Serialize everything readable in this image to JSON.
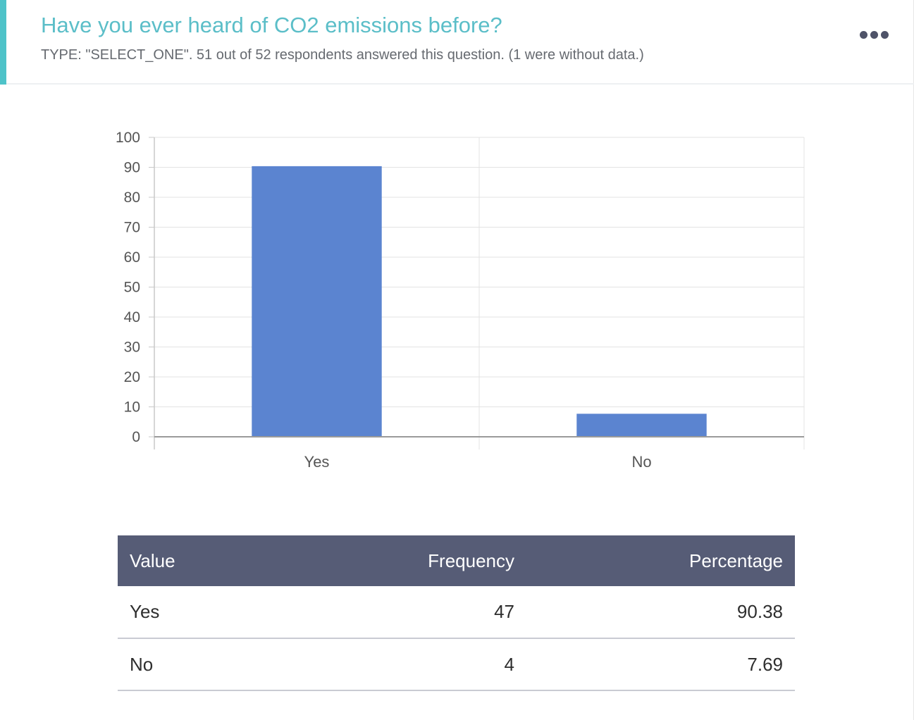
{
  "question": {
    "title": "Have you ever heard of CO2 emissions before?",
    "meta": "TYPE: \"SELECT_ONE\". 51 out of 52 respondents answered this question. (1 were without data.)",
    "accent_color": "#4ec3c9",
    "menu_icon": "more-horizontal-icon"
  },
  "chart_data": {
    "type": "bar",
    "categories": [
      "Yes",
      "No"
    ],
    "values": [
      90.38,
      7.69
    ],
    "title": "",
    "xlabel": "",
    "ylabel": "",
    "ylim": [
      0,
      100
    ],
    "yticks": [
      "0",
      "10",
      "20",
      "30",
      "40",
      "50",
      "60",
      "70",
      "80",
      "90",
      "100"
    ],
    "grid": true,
    "bar_color": "#5b84d0"
  },
  "table": {
    "headers": [
      "Value",
      "Frequency",
      "Percentage"
    ],
    "rows": [
      [
        "Yes",
        "47",
        "90.38"
      ],
      [
        "No",
        "4",
        "7.69"
      ]
    ],
    "header_color": "#565c76"
  }
}
